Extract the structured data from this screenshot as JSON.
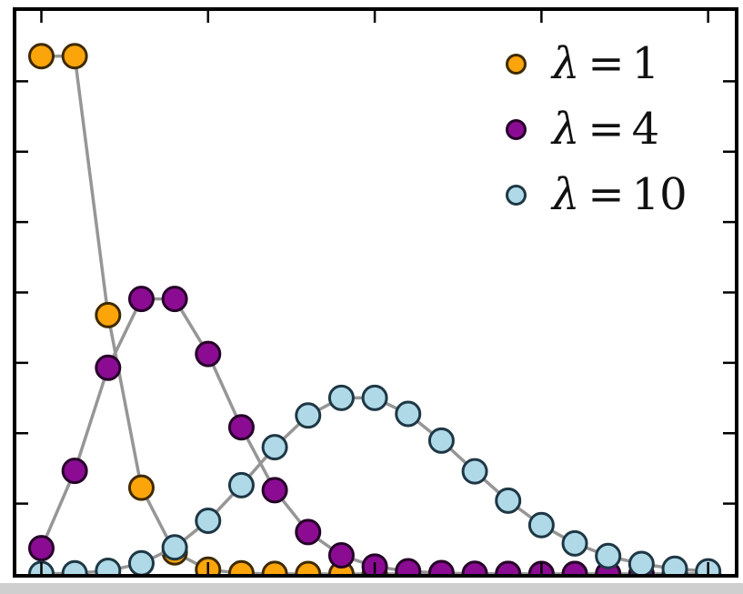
{
  "chart_data": {
    "type": "line",
    "title": "",
    "xlabel": "",
    "ylabel": "",
    "x": [
      0,
      1,
      2,
      3,
      4,
      5,
      6,
      7,
      8,
      9,
      10,
      11,
      12,
      13,
      14,
      15,
      16,
      17,
      18,
      19,
      20
    ],
    "series": [
      {
        "name": "λ = 1",
        "label_symbol": "λ",
        "label_equals": "=",
        "label_value": "1",
        "lambda": 1,
        "color": "#FCA50A",
        "edge_color": "#3f2a00",
        "values": [
          0.36788,
          0.36788,
          0.18394,
          0.06131,
          0.01533,
          0.00307,
          0.00051,
          7e-05,
          1e-05,
          0.0,
          0.0,
          0.0,
          0.0,
          0.0,
          0.0,
          0.0,
          0.0,
          0.0,
          0.0,
          0.0,
          0.0
        ]
      },
      {
        "name": "λ = 4",
        "label_symbol": "λ",
        "label_equals": "=",
        "label_value": "4",
        "lambda": 4,
        "color": "#8B0C92",
        "edge_color": "#250028",
        "values": [
          0.01832,
          0.07326,
          0.14653,
          0.19537,
          0.19537,
          0.15629,
          0.1042,
          0.05954,
          0.02977,
          0.01323,
          0.00529,
          0.00192,
          0.00064,
          0.0002,
          6e-05,
          2e-05,
          0.0,
          0.0,
          0.0,
          0.0,
          0.0
        ]
      },
      {
        "name": "λ = 10",
        "label_symbol": "λ",
        "label_equals": "=",
        "label_value": "10",
        "lambda": 10,
        "color": "#B0D9E8",
        "edge_color": "#1e3744",
        "values": [
          5e-05,
          0.00045,
          0.00227,
          0.00757,
          0.01892,
          0.03783,
          0.06306,
          0.09008,
          0.1126,
          0.12511,
          0.12511,
          0.11374,
          0.09478,
          0.07291,
          0.05208,
          0.03472,
          0.0217,
          0.01276,
          0.00709,
          0.00373,
          0.00187
        ]
      }
    ],
    "xlim": [
      -0.75,
      20.8
    ],
    "ylim": [
      0,
      0.4
    ],
    "xticks": [
      0,
      5,
      10,
      15,
      20
    ],
    "yticks": [
      0.05,
      0.1,
      0.15,
      0.2,
      0.25,
      0.3,
      0.35
    ],
    "tick_labels_shown": false,
    "grid": false,
    "legend_position": "upper right",
    "line_color": "#969696",
    "frame_color": "#000000",
    "background_color": "#ffffff"
  }
}
